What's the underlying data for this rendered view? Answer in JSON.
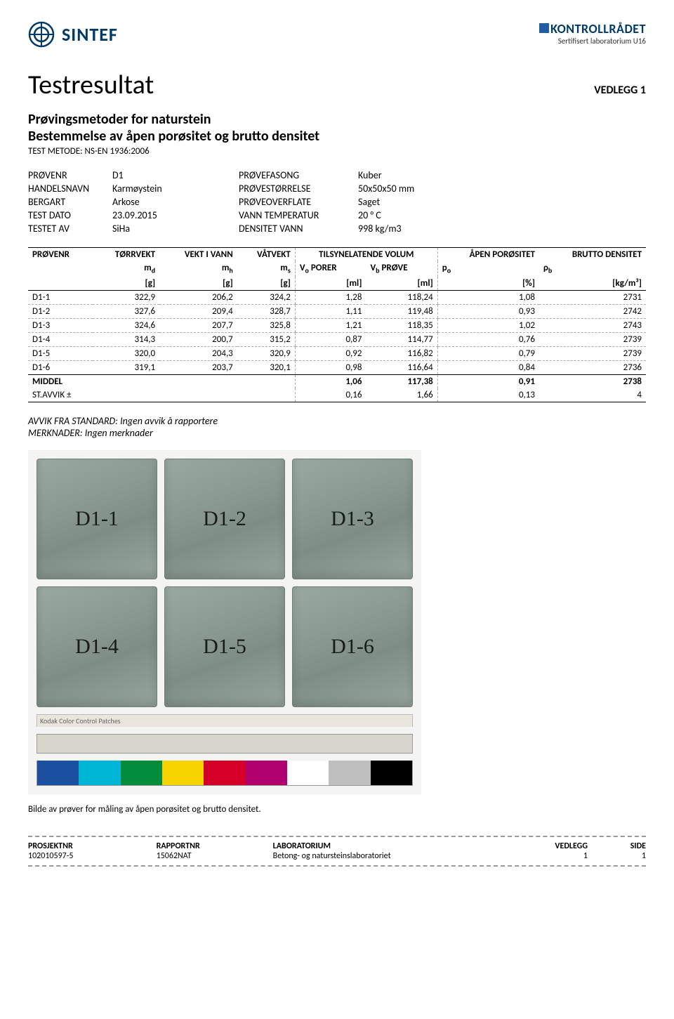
{
  "header": {
    "left_logo_text": "SINTEF",
    "right_logo_text": "KONTROLLRÅDET",
    "right_logo_sub": "Sertifisert laboratorium U16"
  },
  "title": "Testresultat",
  "vedlegg_label": "VEDLEGG 1",
  "subtitle1": "Prøvingsmetoder for naturstein",
  "subtitle2": "Bestemmelse av åpen porøsitet og brutto densitet",
  "method_line": "TEST METODE: NS-EN 1936:2006",
  "info": {
    "rows": [
      {
        "l1": "PRØVENR",
        "v1": "D1",
        "l2": "PRØVEFASONG",
        "v2": "Kuber"
      },
      {
        "l1": "HANDELSNAVN",
        "v1": "Karmøystein",
        "l2": "PRØVESTØRRELSE",
        "v2": "50x50x50 mm"
      },
      {
        "l1": "BERGART",
        "v1": "Arkose",
        "l2": "PRØVEOVERFLATE",
        "v2": "Saget"
      },
      {
        "l1": "TEST DATO",
        "v1": "23.09.2015",
        "l2": "VANN TEMPERATUR",
        "v2": "20 ° C"
      },
      {
        "l1": "TESTET AV",
        "v1": "SiHa",
        "l2": "DENSITET VANN",
        "v2": "998 kg/m3"
      }
    ]
  },
  "table": {
    "head_r1": [
      "PRØVENR",
      "TØRRVEKT",
      "VEKT I VANN",
      "VÅTVEKT",
      "TILSYNELATENDE VOLUM",
      "ÅPEN PORØSITET",
      "BRUTTO DENSITET"
    ],
    "head_r2_html": [
      "",
      "m<sub>d</sub>",
      "m<sub>h</sub>",
      "m<sub>s</sub>",
      "V<sub>o</sub> PORER",
      "V<sub>b</sub> PRØVE",
      "p<sub>o</sub>",
      "ρ<sub>b</sub>"
    ],
    "head_r3": [
      "",
      "[g]",
      "[g]",
      "[g]",
      "[ml]",
      "[ml]",
      "[%]",
      "[kg/m³]"
    ],
    "rows": [
      [
        "D1-1",
        "322,9",
        "206,2",
        "324,2",
        "1,28",
        "118,24",
        "1,08",
        "2731"
      ],
      [
        "D1-2",
        "327,6",
        "209,4",
        "328,7",
        "1,11",
        "119,48",
        "0,93",
        "2742"
      ],
      [
        "D1-3",
        "324,6",
        "207,7",
        "325,8",
        "1,21",
        "118,35",
        "1,02",
        "2743"
      ],
      [
        "D1-4",
        "314,3",
        "200,7",
        "315,2",
        "0,87",
        "114,77",
        "0,76",
        "2739"
      ],
      [
        "D1-5",
        "320,0",
        "204,3",
        "320,9",
        "0,92",
        "116,82",
        "0,79",
        "2739"
      ],
      [
        "D1-6",
        "319,1",
        "203,7",
        "320,1",
        "0,98",
        "116,64",
        "0,84",
        "2736"
      ]
    ],
    "middel": [
      "MIDDEL",
      "",
      "",
      "",
      "1,06",
      "117,38",
      "0,91",
      "2738"
    ],
    "stavvik": [
      "ST.AVVIK ±",
      "",
      "",
      "",
      "0,16",
      "1,66",
      "0,13",
      "4"
    ]
  },
  "notes": {
    "line1": "AVVIK FRA STANDARD: Ingen avvik å rapportere",
    "line2": "MERKNADER: Ingen merknader"
  },
  "photo": {
    "cube_labels": [
      "D1-1",
      "D1-2",
      "D1-3",
      "D1-4",
      "D1-5",
      "D1-6"
    ],
    "kodak_label": "Kodak Color Control Patches",
    "ruler_colors": [
      "#d8d6cc",
      "#d8d6cc",
      "#d8d6cc",
      "#d8d6cc",
      "#d8d6cc",
      "#d8d6cc",
      "#d8d6cc",
      "#d8d6cc",
      "#d8d6cc"
    ],
    "swatch_colors": [
      "#1b4fa0",
      "#00b6d6",
      "#008c3a",
      "#f7d400",
      "#d4002a",
      "#b0006e",
      "#ffffff",
      "#bfbfbf",
      "#000000"
    ]
  },
  "caption": "Bilde av prøver for måling av åpen porøsitet og brutto densitet.",
  "footer": {
    "labels": [
      "PROSJEKTNR",
      "RAPPORTNR",
      "LABORATORIUM",
      "VEDLEGG",
      "SIDE"
    ],
    "values": [
      "102010597-5",
      "15062NAT",
      "Betong- og natursteinslaboratoriet",
      "1",
      "1"
    ]
  }
}
